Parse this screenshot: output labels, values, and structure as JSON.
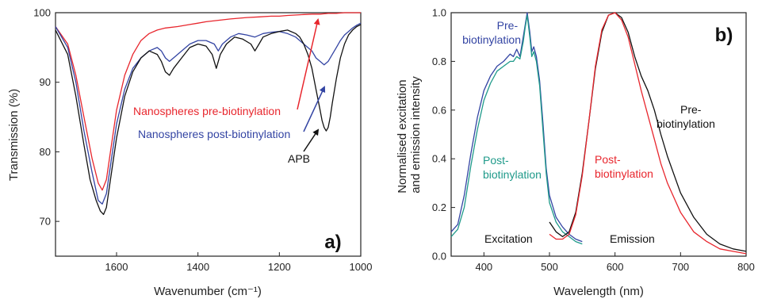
{
  "chart_data": [
    {
      "type": "line",
      "panel_label": "a)",
      "xlabel": "Wavenumber (cm⁻¹)",
      "ylabel": "Transmission (%)",
      "xlim": [
        1750,
        1000
      ],
      "ylim": [
        65,
        100
      ],
      "x_reversed": true,
      "x_ticks": [
        1600,
        1400,
        1200,
        1000
      ],
      "y_ticks": [
        70,
        80,
        90,
        100
      ],
      "grid": false,
      "series": [
        {
          "name": "Nanospheres pre-biotinylation",
          "color": "#e8262d",
          "x": [
            1750,
            1720,
            1700,
            1680,
            1660,
            1645,
            1635,
            1625,
            1615,
            1600,
            1580,
            1560,
            1540,
            1520,
            1500,
            1480,
            1450,
            1420,
            1400,
            1380,
            1350,
            1320,
            1300,
            1280,
            1250,
            1220,
            1200,
            1180,
            1150,
            1120,
            1100,
            1080,
            1060,
            1040,
            1020,
            1000
          ],
          "y": [
            98,
            95.5,
            91,
            85,
            79,
            75.5,
            74.5,
            76,
            80,
            86,
            91,
            94,
            96,
            97,
            97.5,
            97.8,
            98,
            98.3,
            98.5,
            98.7,
            98.9,
            99.1,
            99.2,
            99.3,
            99.4,
            99.5,
            99.5,
            99.6,
            99.7,
            99.8,
            99.8,
            99.9,
            99.9,
            100,
            100,
            100
          ]
        },
        {
          "name": "Nanospheres post-biotinylation",
          "color": "#3344a3",
          "x": [
            1750,
            1720,
            1700,
            1680,
            1660,
            1645,
            1635,
            1625,
            1615,
            1600,
            1580,
            1560,
            1540,
            1520,
            1500,
            1490,
            1480,
            1470,
            1460,
            1440,
            1420,
            1400,
            1380,
            1360,
            1350,
            1340,
            1320,
            1300,
            1280,
            1260,
            1240,
            1220,
            1200,
            1180,
            1160,
            1140,
            1120,
            1110,
            1100,
            1090,
            1080,
            1070,
            1060,
            1050,
            1040,
            1030,
            1020,
            1010,
            1000
          ],
          "y": [
            98,
            95,
            90,
            83,
            77,
            73,
            72.5,
            74,
            78,
            84,
            89,
            92,
            93.5,
            94.5,
            95,
            94.5,
            93.5,
            93,
            93.5,
            94.5,
            95.5,
            96,
            96,
            95.5,
            94.5,
            95.5,
            96.5,
            97,
            96.8,
            96.5,
            97,
            97.2,
            97.3,
            97,
            96.5,
            95.5,
            94.5,
            93.5,
            93,
            92.5,
            93,
            94,
            95,
            96,
            96.8,
            97.3,
            97.8,
            98.2,
            98.5
          ]
        },
        {
          "name": "APB",
          "color": "#111111",
          "x": [
            1750,
            1720,
            1700,
            1680,
            1665,
            1650,
            1640,
            1632,
            1625,
            1615,
            1600,
            1580,
            1560,
            1540,
            1520,
            1500,
            1490,
            1480,
            1470,
            1460,
            1440,
            1420,
            1400,
            1380,
            1365,
            1355,
            1345,
            1330,
            1310,
            1290,
            1270,
            1260,
            1250,
            1240,
            1220,
            1200,
            1180,
            1160,
            1150,
            1140,
            1130,
            1120,
            1110,
            1100,
            1095,
            1090,
            1085,
            1080,
            1075,
            1070,
            1060,
            1050,
            1040,
            1030,
            1020,
            1010,
            1000
          ],
          "y": [
            97.5,
            94,
            88,
            81,
            76,
            73,
            71.5,
            71,
            72,
            76,
            82,
            88,
            91.5,
            93.5,
            94.5,
            94,
            93,
            91.5,
            91,
            92,
            93.5,
            95,
            95.5,
            95.2,
            94,
            92,
            94,
            95.5,
            96.5,
            96.2,
            95.5,
            94.5,
            95.5,
            96.5,
            97,
            97.3,
            97.5,
            97,
            96.5,
            95.5,
            94,
            92,
            89,
            86,
            84.5,
            83.5,
            83,
            83.5,
            85,
            87,
            90.5,
            93.5,
            95.5,
            96.8,
            97.5,
            98,
            98.3
          ]
        }
      ],
      "annotations": [
        {
          "text": "Nanospheres pre-biotinylation",
          "color": "#e8262d"
        },
        {
          "text": "Nanospheres post-biotinylation",
          "color": "#3344a3"
        },
        {
          "text": "APB",
          "color": "#111111"
        }
      ]
    },
    {
      "type": "line",
      "panel_label": "b)",
      "xlabel": "Wavelength (nm)",
      "ylabel_line1": "Normalised excitation",
      "ylabel_line2": "and emission intensity",
      "xlim": [
        350,
        800
      ],
      "ylim": [
        0,
        1.0
      ],
      "x_ticks": [
        400,
        500,
        600,
        700,
        800
      ],
      "y_ticks": [
        0.0,
        0.2,
        0.4,
        0.6,
        0.8,
        1.0
      ],
      "grid": false,
      "series": [
        {
          "name": "Excitation Pre-biotinylation",
          "color": "#3344a3",
          "x": [
            350,
            360,
            370,
            380,
            390,
            400,
            410,
            420,
            430,
            440,
            445,
            450,
            455,
            460,
            463,
            466,
            470,
            473,
            476,
            480,
            485,
            490,
            495,
            500,
            510,
            520,
            530,
            540,
            550
          ],
          "y": [
            0.1,
            0.13,
            0.25,
            0.42,
            0.57,
            0.68,
            0.74,
            0.78,
            0.8,
            0.83,
            0.82,
            0.85,
            0.82,
            0.9,
            0.95,
            1.0,
            0.92,
            0.84,
            0.86,
            0.82,
            0.72,
            0.55,
            0.36,
            0.25,
            0.16,
            0.12,
            0.09,
            0.07,
            0.06
          ]
        },
        {
          "name": "Excitation Post-biotinylation",
          "color": "#1f9a8a",
          "x": [
            350,
            360,
            370,
            380,
            390,
            400,
            410,
            420,
            430,
            440,
            445,
            450,
            455,
            460,
            463,
            466,
            470,
            473,
            476,
            480,
            485,
            490,
            495,
            500,
            510,
            520,
            530,
            540,
            550
          ],
          "y": [
            0.08,
            0.11,
            0.2,
            0.37,
            0.52,
            0.64,
            0.71,
            0.76,
            0.78,
            0.8,
            0.8,
            0.82,
            0.81,
            0.88,
            0.94,
            0.99,
            0.9,
            0.82,
            0.84,
            0.8,
            0.7,
            0.52,
            0.34,
            0.22,
            0.14,
            0.1,
            0.08,
            0.06,
            0.05
          ]
        },
        {
          "name": "Emission Pre-biotinylation",
          "color": "#111111",
          "x": [
            500,
            510,
            520,
            530,
            540,
            550,
            560,
            570,
            580,
            590,
            600,
            610,
            620,
            630,
            640,
            650,
            660,
            670,
            680,
            700,
            720,
            740,
            760,
            780,
            800
          ],
          "y": [
            0.14,
            0.1,
            0.08,
            0.1,
            0.18,
            0.34,
            0.55,
            0.77,
            0.92,
            0.99,
            1.0,
            0.98,
            0.92,
            0.82,
            0.74,
            0.68,
            0.6,
            0.5,
            0.41,
            0.26,
            0.16,
            0.09,
            0.05,
            0.03,
            0.02
          ]
        },
        {
          "name": "Emission Post-biotinylation",
          "color": "#e8262d",
          "x": [
            500,
            510,
            520,
            530,
            540,
            550,
            560,
            570,
            580,
            590,
            600,
            610,
            620,
            630,
            640,
            650,
            660,
            670,
            680,
            700,
            720,
            740,
            760,
            780,
            800
          ],
          "y": [
            0.09,
            0.07,
            0.07,
            0.09,
            0.17,
            0.33,
            0.55,
            0.78,
            0.93,
            0.99,
            1.0,
            0.97,
            0.9,
            0.79,
            0.68,
            0.58,
            0.48,
            0.38,
            0.3,
            0.18,
            0.1,
            0.06,
            0.03,
            0.02,
            0.01
          ]
        }
      ],
      "annotations": [
        {
          "line1": "Pre-",
          "line2": "biotinylation",
          "color": "#3344a3"
        },
        {
          "line1": "Post-",
          "line2": "biotinylation",
          "color": "#1f9a8a"
        },
        {
          "line1": "Pre-",
          "line2": "biotinylation",
          "color": "#111111"
        },
        {
          "line1": "Post-",
          "line2": "biotinylation",
          "color": "#e8262d"
        },
        {
          "text": "Excitation",
          "color": "#111111"
        },
        {
          "text": "Emission",
          "color": "#111111"
        }
      ]
    }
  ]
}
